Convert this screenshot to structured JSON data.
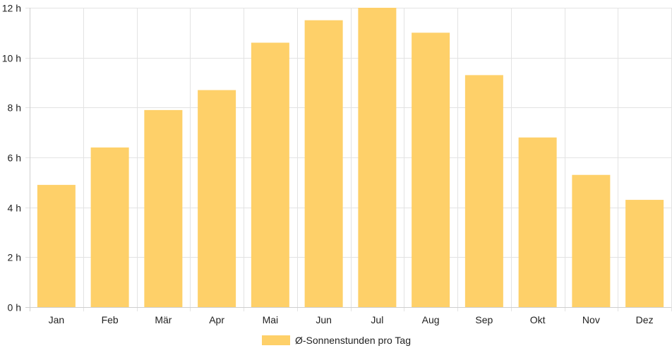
{
  "chart_data": {
    "type": "bar",
    "categories": [
      "Jan",
      "Feb",
      "Mär",
      "Apr",
      "Mai",
      "Jun",
      "Jul",
      "Aug",
      "Sep",
      "Okt",
      "Nov",
      "Dez"
    ],
    "series": [
      {
        "name": "Ø-Sonnenstunden pro Tag",
        "values": [
          4.9,
          6.4,
          7.9,
          8.7,
          10.6,
          11.5,
          12.0,
          11.0,
          9.3,
          6.8,
          5.3,
          4.3
        ]
      }
    ],
    "y_ticks": [
      0,
      2,
      4,
      6,
      8,
      10,
      12
    ],
    "y_tick_suffix": " h",
    "ylim": [
      0,
      12
    ],
    "grid": true,
    "legend_position": "bottom",
    "bar_color": "#fed069"
  }
}
